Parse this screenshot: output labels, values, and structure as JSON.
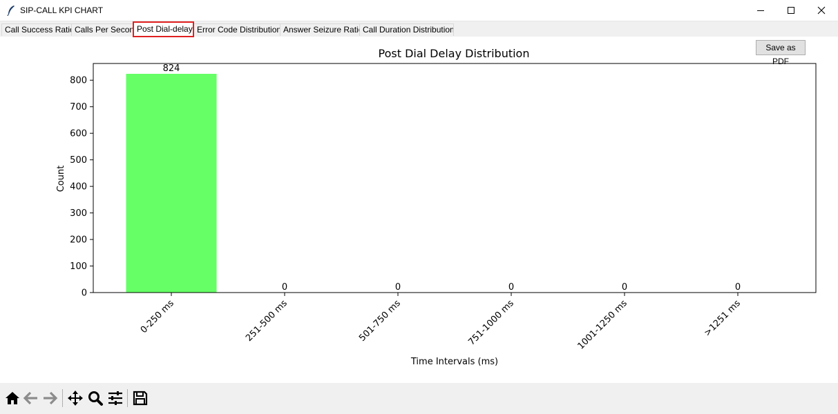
{
  "window": {
    "title": "SIP-CALL KPI CHART"
  },
  "tabs": [
    {
      "label": "Call Success Ratio"
    },
    {
      "label": "Calls Per Second"
    },
    {
      "label": "Post Dial-delay"
    },
    {
      "label": "Error Code Distribution"
    },
    {
      "label": "Answer Seizure Ratio"
    },
    {
      "label": "Call Duration Distribution"
    }
  ],
  "active_tab": "Post Dial-delay",
  "save_button": {
    "label": "Save as PDF"
  },
  "toolbar_icons": [
    "home-icon",
    "back-arrow-icon",
    "forward-arrow-icon",
    "pan-icon",
    "zoom-icon",
    "configure-subplots-icon",
    "save-icon"
  ],
  "chart_data": {
    "type": "bar",
    "title": "Post Dial Delay Distribution",
    "xlabel": "Time Intervals (ms)",
    "ylabel": "Count",
    "categories": [
      "0-250 ms",
      "251-500 ms",
      "501-750 ms",
      "751-1000 ms",
      "1001-1250 ms",
      ">1251 ms"
    ],
    "values": [
      824,
      0,
      0,
      0,
      0,
      0
    ],
    "data_labels": [
      "824",
      "0",
      "0",
      "0",
      "0",
      "0"
    ],
    "ylim": [
      0,
      865
    ],
    "yticks": [
      0,
      100,
      200,
      300,
      400,
      500,
      600,
      700,
      800
    ],
    "bar_color": "#66ff66",
    "grid": false,
    "legend": false
  }
}
